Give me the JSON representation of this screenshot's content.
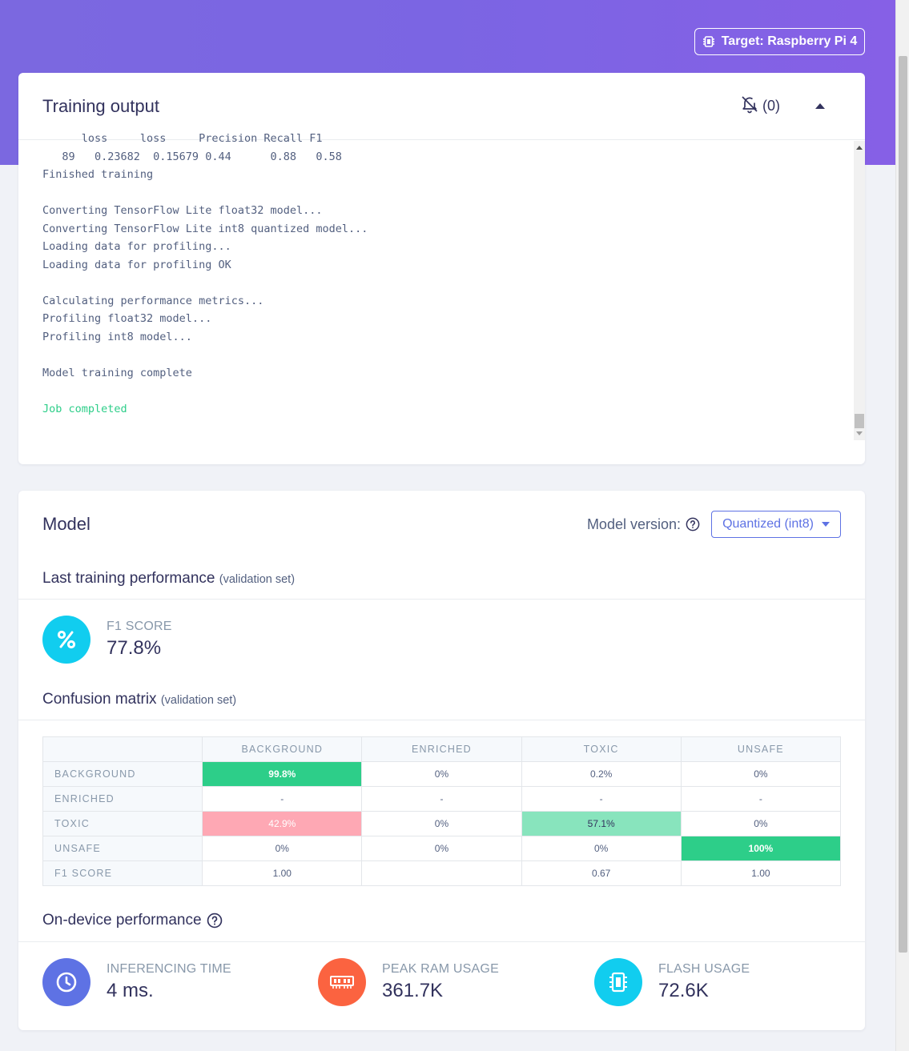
{
  "header": {
    "target_label": "Target: Raspberry Pi 4",
    "colors": {
      "hero": "#7b68e0",
      "accent": "#5e72e4",
      "success": "#2dce89"
    }
  },
  "training_output": {
    "title": "Training output",
    "notifications_count": "(0)",
    "log_lines": [
      "      loss     loss     Precision Recall F1",
      "   89   0.23682  0.15679 0.44      0.88   0.58",
      "Finished training",
      "",
      "Converting TensorFlow Lite float32 model...",
      "Converting TensorFlow Lite int8 quantized model...",
      "Loading data for profiling...",
      "Loading data for profiling OK",
      "",
      "Calculating performance metrics...",
      "Profiling float32 model...",
      "Profiling int8 model...",
      "",
      "Model training complete",
      ""
    ],
    "final_line": "Job completed"
  },
  "model": {
    "title": "Model",
    "version_label": "Model version:",
    "version_value": "Quantized (int8)",
    "last_training": {
      "title": "Last training performance",
      "subtitle": "(validation set)",
      "f1_label": "F1 SCORE",
      "f1_value": "77.8%"
    },
    "confusion": {
      "title": "Confusion matrix",
      "subtitle": "(validation set)",
      "columns": [
        "BACKGROUND",
        "ENRICHED",
        "TOXIC",
        "UNSAFE"
      ],
      "rows": [
        {
          "label": "BACKGROUND",
          "cells": [
            "99.8%",
            "0%",
            "0.2%",
            "0%"
          ]
        },
        {
          "label": "ENRICHED",
          "cells": [
            "-",
            "-",
            "-",
            "-"
          ]
        },
        {
          "label": "TOXIC",
          "cells": [
            "42.9%",
            "0%",
            "57.1%",
            "0%"
          ]
        },
        {
          "label": "UNSAFE",
          "cells": [
            "0%",
            "0%",
            "0%",
            "100%"
          ]
        },
        {
          "label": "F1 SCORE",
          "cells": [
            "1.00",
            "",
            "0.67",
            "1.00"
          ]
        }
      ]
    },
    "on_device": {
      "title": "On-device performance",
      "metrics": [
        {
          "label": "INFERENCING TIME",
          "value": "4 ms.",
          "icon": "clock-icon",
          "color": "#5e72e4"
        },
        {
          "label": "PEAK RAM USAGE",
          "value": "361.7K",
          "icon": "ram-icon",
          "color": "#fb6340"
        },
        {
          "label": "FLASH USAGE",
          "value": "72.6K",
          "icon": "chip-icon",
          "color": "#11cdef"
        }
      ]
    }
  }
}
